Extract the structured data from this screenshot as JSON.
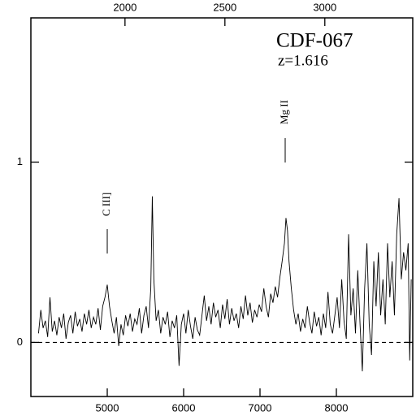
{
  "chart_data": {
    "type": "line",
    "title": "CDF-067",
    "subtitle": "z=1.616",
    "annotations": [
      {
        "text": "C III]"
      },
      {
        "text": "Mg II"
      }
    ],
    "x": [
      4100,
      4130,
      4160,
      4190,
      4220,
      4250,
      4280,
      4310,
      4340,
      4370,
      4400,
      4430,
      4460,
      4490,
      4520,
      4550,
      4580,
      4610,
      4640,
      4670,
      4700,
      4730,
      4760,
      4790,
      4820,
      4850,
      4880,
      4910,
      4940,
      4970,
      5000,
      5030,
      5060,
      5090,
      5120,
      5150,
      5180,
      5210,
      5240,
      5270,
      5300,
      5330,
      5360,
      5390,
      5420,
      5450,
      5480,
      5510,
      5540,
      5570,
      5590,
      5610,
      5640,
      5670,
      5700,
      5730,
      5760,
      5790,
      5820,
      5850,
      5880,
      5910,
      5940,
      5970,
      6000,
      6030,
      6060,
      6090,
      6120,
      6150,
      6180,
      6210,
      6240,
      6270,
      6300,
      6330,
      6360,
      6390,
      6420,
      6450,
      6480,
      6510,
      6540,
      6570,
      6600,
      6630,
      6660,
      6690,
      6720,
      6750,
      6780,
      6810,
      6840,
      6870,
      6900,
      6930,
      6960,
      6990,
      7020,
      7050,
      7080,
      7110,
      7140,
      7170,
      7200,
      7230,
      7260,
      7290,
      7320,
      7340,
      7360,
      7380,
      7410,
      7440,
      7470,
      7500,
      7530,
      7560,
      7590,
      7620,
      7650,
      7680,
      7710,
      7740,
      7770,
      7800,
      7830,
      7860,
      7890,
      7920,
      7950,
      7980,
      8010,
      8040,
      8070,
      8100,
      8130,
      8160,
      8190,
      8220,
      8250,
      8280,
      8310,
      8340,
      8370,
      8400,
      8430,
      8460,
      8490,
      8520,
      8550,
      8580,
      8610,
      8640,
      8670,
      8700,
      8730,
      8760,
      8790,
      8820,
      8850,
      8880,
      8910,
      8940,
      8960,
      8980
    ],
    "series": [
      {
        "color": "#000000",
        "values": [
          0.05,
          0.18,
          0.08,
          0.12,
          0.03,
          0.25,
          0.06,
          0.12,
          0.04,
          0.14,
          0.08,
          0.16,
          0.02,
          0.11,
          0.15,
          0.05,
          0.17,
          0.09,
          0.13,
          0.06,
          0.16,
          0.1,
          0.18,
          0.08,
          0.14,
          0.1,
          0.19,
          0.07,
          0.2,
          0.25,
          0.32,
          0.2,
          0.12,
          0.05,
          0.14,
          -0.02,
          0.1,
          0.04,
          0.15,
          0.09,
          0.16,
          0.06,
          0.13,
          0.1,
          0.19,
          0.05,
          0.15,
          0.2,
          0.08,
          0.3,
          0.81,
          0.35,
          0.12,
          0.18,
          0.05,
          0.14,
          0.1,
          0.17,
          0.03,
          0.12,
          0.08,
          0.15,
          -0.13,
          0.1,
          0.16,
          0.05,
          0.18,
          0.09,
          0.02,
          0.14,
          0.07,
          0.04,
          0.15,
          0.26,
          0.12,
          0.2,
          0.1,
          0.22,
          0.14,
          0.18,
          0.08,
          0.21,
          0.13,
          0.24,
          0.1,
          0.19,
          0.12,
          0.16,
          0.08,
          0.2,
          0.13,
          0.26,
          0.15,
          0.22,
          0.11,
          0.18,
          0.14,
          0.21,
          0.17,
          0.3,
          0.2,
          0.14,
          0.27,
          0.22,
          0.31,
          0.25,
          0.36,
          0.45,
          0.55,
          0.69,
          0.62,
          0.45,
          0.3,
          0.18,
          0.1,
          0.16,
          0.06,
          0.13,
          0.08,
          0.2,
          0.11,
          0.05,
          0.17,
          0.09,
          0.14,
          0.04,
          0.16,
          0.08,
          0.28,
          0.1,
          0.05,
          0.15,
          0.25,
          0.08,
          0.35,
          0.12,
          0.02,
          0.6,
          0.15,
          0.3,
          0.05,
          0.4,
          0.1,
          -0.16,
          0.3,
          0.55,
          0.1,
          -0.07,
          0.45,
          0.2,
          0.5,
          0.15,
          0.35,
          0.1,
          0.55,
          0.25,
          0.45,
          0.15,
          0.6,
          0.8,
          0.35,
          0.5,
          0.4,
          0.55,
          -0.1,
          0.35
        ]
      }
    ],
    "reference_line": 0,
    "xlim": [
      4000,
      9000
    ],
    "xticks": [
      5000,
      6000,
      7000,
      8000
    ],
    "x2lim": [
      1529,
      3440
    ],
    "x2ticks": [
      2000,
      2500,
      3000
    ],
    "ylim": [
      -0.3,
      1.8
    ],
    "yticks": [
      0,
      1
    ]
  }
}
